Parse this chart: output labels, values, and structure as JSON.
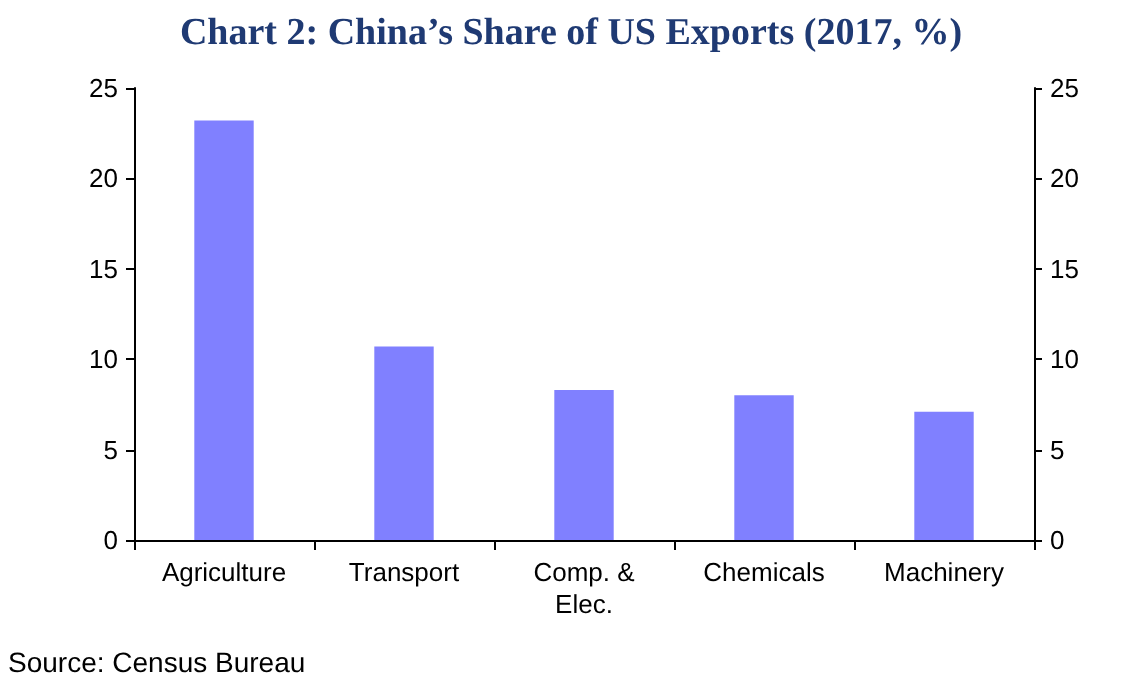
{
  "chart_data": {
    "type": "bar",
    "title": "Chart 2: China’s Share of US Exports (2017, %)",
    "categories": [
      "Agriculture",
      "Transport",
      "Comp. &\nElec.",
      "Chemicals",
      "Machinery"
    ],
    "values": [
      23.2,
      10.7,
      8.3,
      8.0,
      7.1
    ],
    "color": "#8080ff",
    "ylim": [
      0,
      25
    ],
    "yticks": [
      0,
      5,
      10,
      15,
      20,
      25
    ],
    "y2lim": [
      0,
      25
    ],
    "y2ticks": [
      0,
      5,
      10,
      15,
      20,
      25
    ],
    "grid": false,
    "annotations": [
      "Source: Census Bureau"
    ]
  }
}
